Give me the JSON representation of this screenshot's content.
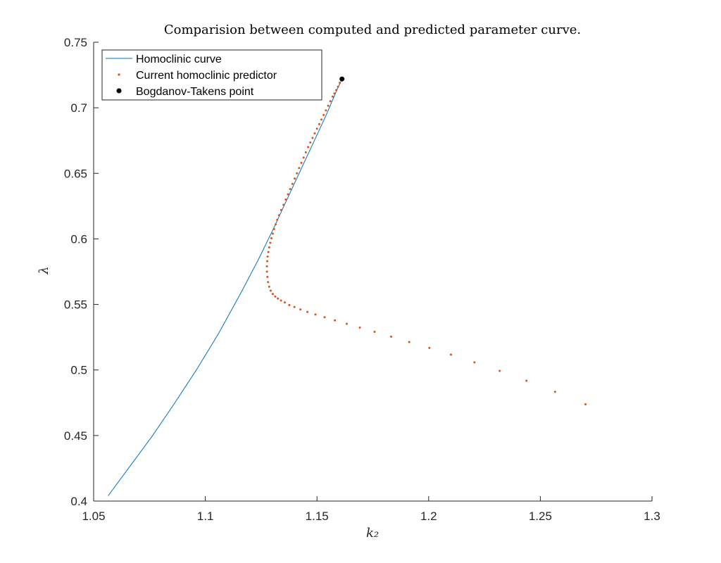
{
  "chart_data": {
    "type": "line",
    "title": "Comparision between computed and predicted parameter curve.",
    "xlabel": "k₂",
    "ylabel": "λ",
    "xlim": [
      1.05,
      1.3
    ],
    "ylim": [
      0.4,
      0.75
    ],
    "xticks": [
      "1.05",
      "1.1",
      "1.15",
      "1.2",
      "1.25",
      "1.3"
    ],
    "yticks": [
      "0.4",
      "0.45",
      "0.5",
      "0.55",
      "0.6",
      "0.65",
      "0.7",
      "0.75"
    ],
    "grid": false,
    "legend_position": "top-left",
    "series": [
      {
        "name": "Homoclinic curve",
        "style": "line",
        "color": "#0072BD",
        "x": [
          1.0565,
          1.066,
          1.076,
          1.086,
          1.096,
          1.106,
          1.116,
          1.124,
          1.13,
          1.136,
          1.142,
          1.148,
          1.154,
          1.1585,
          1.1612
        ],
        "y": [
          0.404,
          0.426,
          0.449,
          0.474,
          0.5,
          0.528,
          0.559,
          0.585,
          0.606,
          0.628,
          0.65,
          0.672,
          0.694,
          0.712,
          0.722
        ]
      },
      {
        "name": "Current homoclinic predictor",
        "style": "dots",
        "color": "#D95319",
        "x": [
          1.1602,
          1.1594,
          1.1586,
          1.1578,
          1.157,
          1.156,
          1.155,
          1.154,
          1.153,
          1.152,
          1.151,
          1.15,
          1.149,
          1.148,
          1.147,
          1.146,
          1.145,
          1.144,
          1.143,
          1.142,
          1.141,
          1.14,
          1.139,
          1.138,
          1.137,
          1.136,
          1.135,
          1.134,
          1.133,
          1.1322,
          1.1315,
          1.1308,
          1.1302,
          1.1296,
          1.1291,
          1.1286,
          1.1282,
          1.1279,
          1.1277,
          1.1276,
          1.1276,
          1.1278,
          1.1281,
          1.1286,
          1.1293,
          1.1302,
          1.1313,
          1.1325,
          1.1339,
          1.1356,
          1.1376,
          1.1399,
          1.1426,
          1.1457,
          1.1493,
          1.1534,
          1.158,
          1.1633,
          1.1692,
          1.1758,
          1.1832,
          1.1913,
          1.2003,
          1.21,
          1.2205,
          1.2318,
          1.2438,
          1.2566,
          1.2702
        ],
        "y": [
          0.719,
          0.716,
          0.7135,
          0.711,
          0.7085,
          0.705,
          0.7015,
          0.698,
          0.6945,
          0.691,
          0.6875,
          0.684,
          0.6805,
          0.677,
          0.6735,
          0.67,
          0.666,
          0.662,
          0.658,
          0.654,
          0.65,
          0.646,
          0.642,
          0.638,
          0.634,
          0.63,
          0.626,
          0.622,
          0.618,
          0.6145,
          0.611,
          0.6075,
          0.604,
          0.6005,
          0.597,
          0.5935,
          0.59,
          0.5865,
          0.583,
          0.579,
          0.575,
          0.571,
          0.567,
          0.5635,
          0.5605,
          0.558,
          0.556,
          0.5545,
          0.553,
          0.5515,
          0.5495,
          0.548,
          0.5462,
          0.5443,
          0.5423,
          0.5402,
          0.5378,
          0.5352,
          0.5323,
          0.5291,
          0.5254,
          0.5213,
          0.5168,
          0.5117,
          0.5058,
          0.4993,
          0.4918,
          0.4833,
          0.4738
        ]
      },
      {
        "name": "Bogdanov-Takens point",
        "style": "marker",
        "color": "#000000",
        "x": [
          1.1612
        ],
        "y": [
          0.722
        ]
      }
    ]
  }
}
